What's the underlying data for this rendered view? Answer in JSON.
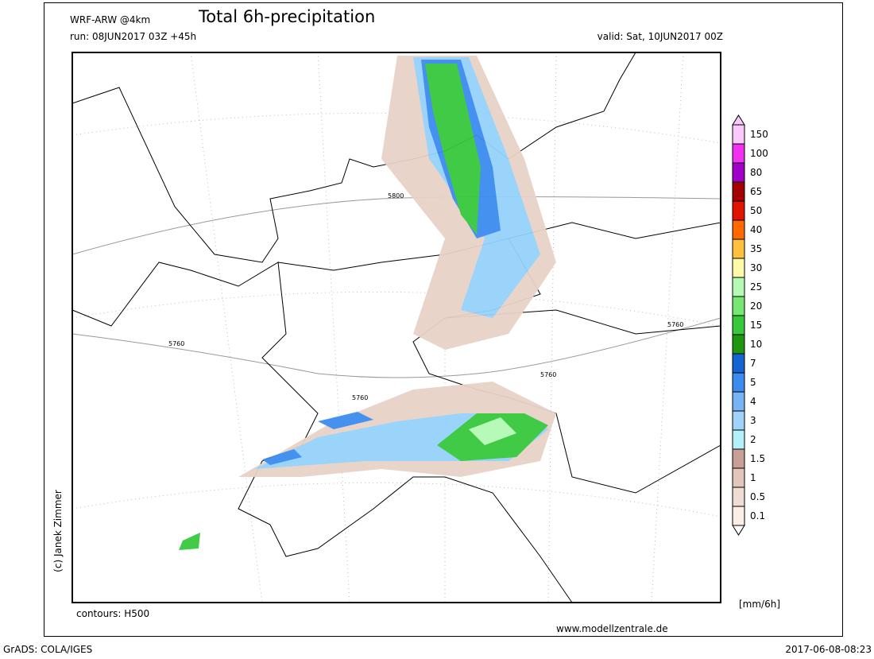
{
  "header": {
    "model": "WRF-ARW @4km",
    "title": "Total 6h-precipitation",
    "run": "run: 08JUN2017 03Z +45h",
    "valid": "valid: Sat, 10JUN2017 00Z"
  },
  "map": {
    "contour_labels": [
      "5800",
      "5760",
      "5760",
      "5760",
      "5760"
    ]
  },
  "legend": {
    "unit": "[mm/6h]",
    "levels": [
      0.1,
      0.5,
      1,
      1.5,
      2,
      3,
      4,
      5,
      7,
      10,
      15,
      20,
      25,
      30,
      35,
      40,
      50,
      65,
      80,
      100,
      150
    ],
    "colors": [
      "#fbefe6",
      "#efdcd2",
      "#e2c6ba",
      "#c8a096",
      "#b4f0fa",
      "#a0d2fa",
      "#78b4f5",
      "#3c8cf0",
      "#1464d2",
      "#1e9614",
      "#37c83c",
      "#78e673",
      "#b4fab4",
      "#fffaaa",
      "#ffc03c",
      "#ff6a00",
      "#e11400",
      "#a50000",
      "#a000c8",
      "#f032f0",
      "#fac8fa"
    ]
  },
  "footer": {
    "copyright": "(c) Janek Zimmer",
    "contours": "contours: H500",
    "website": "www.modellzentrale.de",
    "software": "GrADS: COLA/IGES",
    "timestamp": "2017-06-08-08:23"
  }
}
